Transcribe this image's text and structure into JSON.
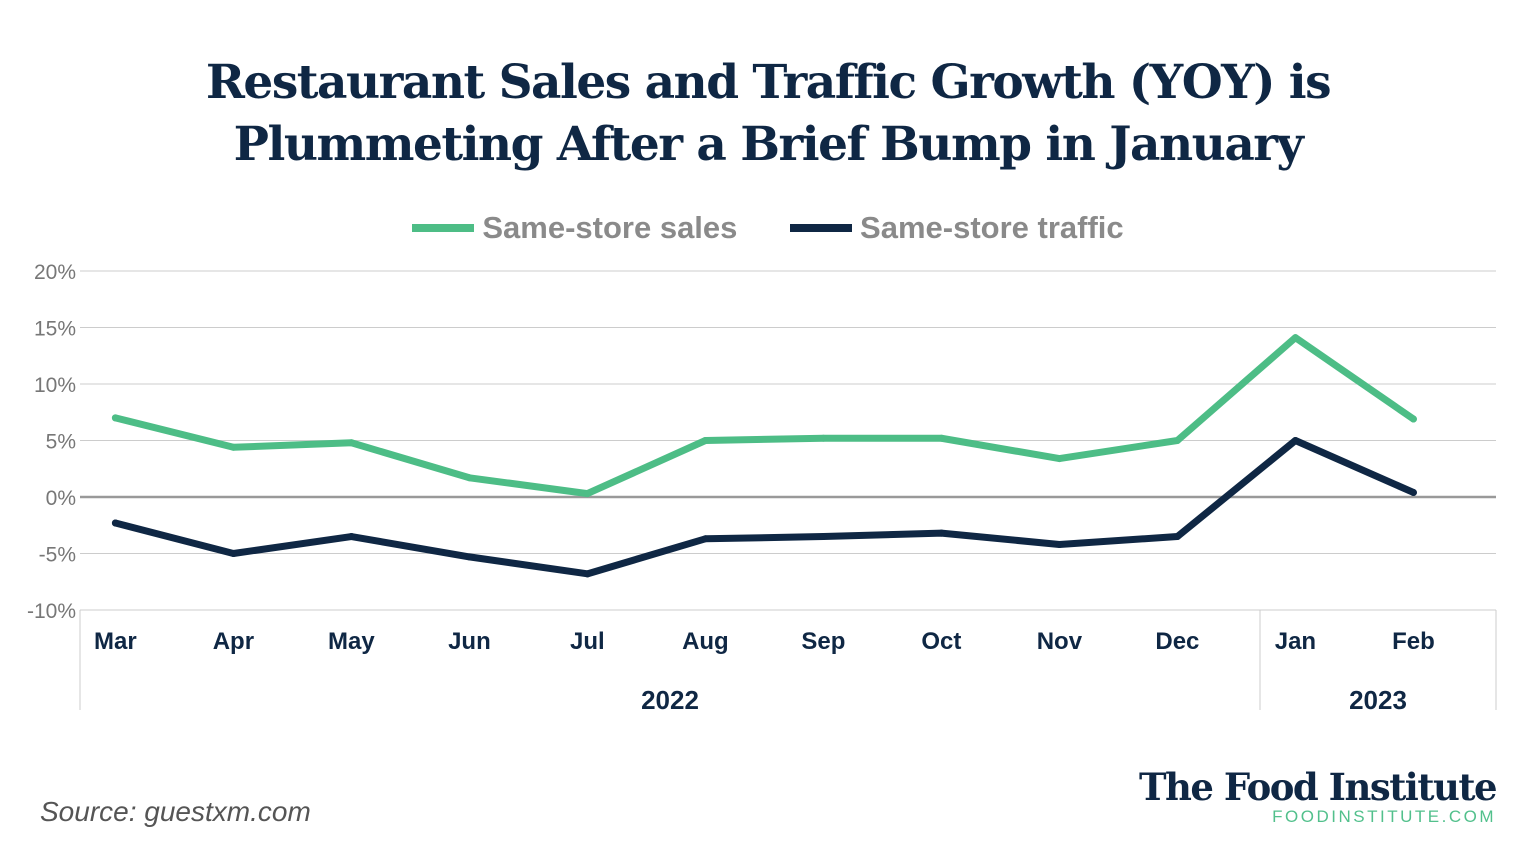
{
  "chart_data": {
    "type": "line",
    "title": "Restaurant Sales and Traffic Growth (YOY) is Plummeting After a Brief Bump in January",
    "title_lines": [
      "Restaurant Sales and Traffic Growth (YOY) is",
      "Plummeting After a Brief Bump in January"
    ],
    "categories": [
      "Mar",
      "Apr",
      "May",
      "Jun",
      "Jul",
      "Aug",
      "Sep",
      "Oct",
      "Nov",
      "Dec",
      "Jan",
      "Feb"
    ],
    "year_groups": [
      {
        "label": "2022",
        "count": 10
      },
      {
        "label": "2023",
        "count": 2
      }
    ],
    "series": [
      {
        "name": "Same-store sales",
        "color": "#4dbd86",
        "values": [
          7.0,
          4.4,
          4.8,
          1.7,
          0.3,
          5.0,
          5.2,
          5.2,
          3.4,
          5.0,
          14.1,
          6.9
        ]
      },
      {
        "name": "Same-store traffic",
        "color": "#0f2744",
        "values": [
          -2.3,
          -5.0,
          -3.5,
          -5.3,
          -6.8,
          -3.7,
          -3.5,
          -3.2,
          -4.2,
          -3.5,
          5.0,
          0.4
        ]
      }
    ],
    "yticks": [
      "20%",
      "15%",
      "10%",
      "5%",
      "0%",
      "-5%",
      "-10%"
    ],
    "ytick_values": [
      20,
      15,
      10,
      5,
      0,
      -5,
      -10
    ],
    "ylim": [
      -10,
      20
    ],
    "grid": true,
    "legend": "top-center"
  },
  "source": "Source: guestxm.com",
  "logo": {
    "name": "The Food Institute",
    "url_text": "FOODINSTITUTE.COM"
  }
}
